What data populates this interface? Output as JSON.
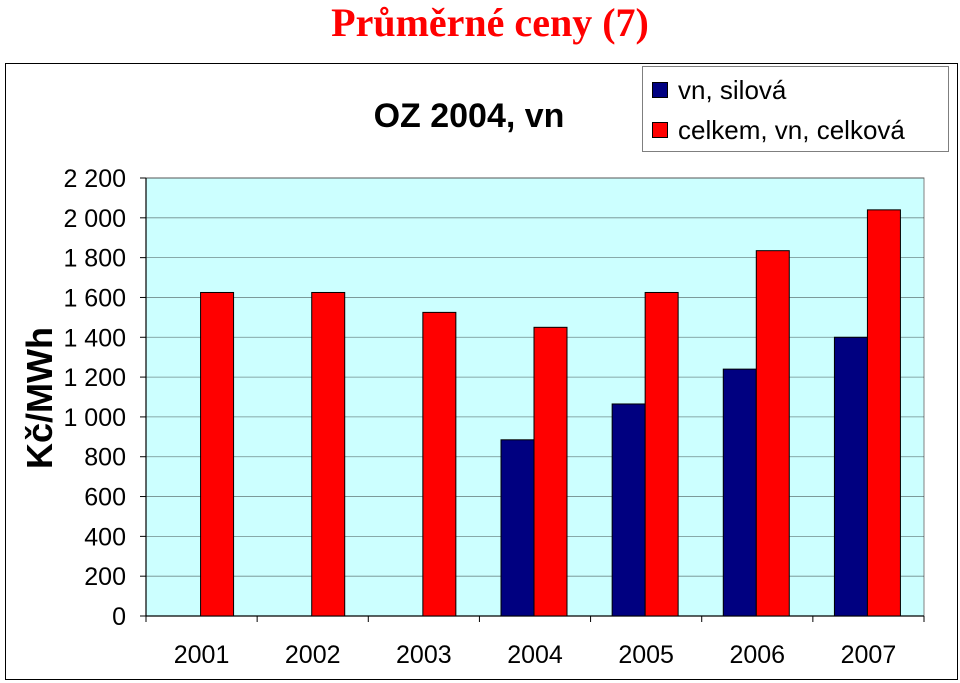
{
  "page": {
    "title": "Průměrné ceny (7)"
  },
  "chart_data": {
    "type": "bar",
    "title": "OZ 2004, vn",
    "xlabel": "",
    "ylabel": "Kč/MWh",
    "categories": [
      "2001",
      "2002",
      "2003",
      "2004",
      "2005",
      "2006",
      "2007"
    ],
    "series": [
      {
        "name": "vn, silová",
        "color": "#000080",
        "values": [
          null,
          null,
          null,
          885,
          1065,
          1240,
          1400
        ]
      },
      {
        "name": "celkem, vn, celková",
        "color": "#ff0000",
        "values": [
          1625,
          1625,
          1525,
          1450,
          1625,
          1835,
          2040
        ]
      }
    ],
    "ylim": [
      0,
      2200
    ],
    "yticks": [
      0,
      200,
      400,
      600,
      800,
      1000,
      1200,
      1400,
      1600,
      1800,
      2000,
      2200
    ],
    "ytick_labels": [
      "0",
      "200",
      "400",
      "600",
      "800",
      "1 000",
      "1 200",
      "1 400",
      "1 600",
      "1 800",
      "2 000",
      "2 200"
    ],
    "grid": true,
    "plot_background": "#ccffff",
    "legend_position": "top-right"
  }
}
